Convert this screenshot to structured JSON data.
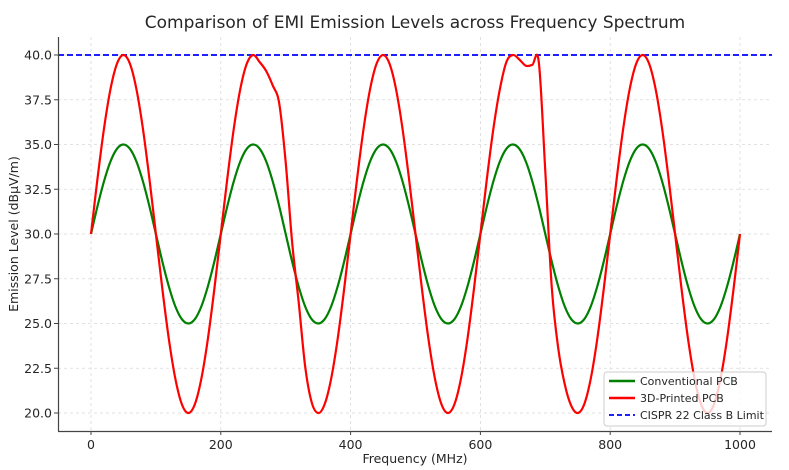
{
  "chart_data": {
    "type": "line",
    "title": "Comparison of EMI Emission Levels across Frequency Spectrum",
    "xlabel": "Frequency (MHz)",
    "ylabel": "Emission Level (dBµV/m)",
    "xlim": [
      -50,
      1050
    ],
    "ylim": [
      19,
      41
    ],
    "xticks": [
      0,
      200,
      400,
      600,
      800,
      1000
    ],
    "xtick_labels": [
      "0",
      "200",
      "400",
      "600",
      "800",
      "1000"
    ],
    "yticks": [
      20.0,
      22.5,
      25.0,
      27.5,
      30.0,
      32.5,
      35.0,
      37.5,
      40.0
    ],
    "ytick_labels": [
      "20.0",
      "22.5",
      "25.0",
      "27.5",
      "30.0",
      "32.5",
      "35.0",
      "37.5",
      "40.0"
    ],
    "grid": true,
    "legend_position": "lower-right",
    "x": [
      0,
      10,
      20,
      30,
      40,
      50,
      60,
      70,
      80,
      90,
      100,
      110,
      120,
      130,
      140,
      150,
      160,
      170,
      180,
      190,
      200,
      210,
      220,
      230,
      240,
      250,
      260,
      270,
      280,
      290,
      300,
      310,
      320,
      330,
      340,
      350,
      360,
      370,
      380,
      390,
      400,
      410,
      420,
      430,
      440,
      450,
      460,
      470,
      480,
      490,
      500,
      510,
      520,
      530,
      540,
      550,
      560,
      570,
      580,
      590,
      600,
      610,
      620,
      630,
      640,
      650,
      660,
      670,
      680,
      690,
      700,
      710,
      720,
      730,
      740,
      750,
      760,
      770,
      780,
      790,
      800,
      810,
      820,
      830,
      840,
      850,
      860,
      870,
      880,
      890,
      900,
      910,
      920,
      930,
      940,
      950,
      960,
      970,
      980,
      990,
      1000
    ],
    "series": [
      {
        "name": "Conventional PCB",
        "color": "#008000",
        "style": "solid",
        "values": [
          30,
          31.55,
          32.94,
          34.05,
          34.76,
          35,
          34.76,
          34.05,
          32.94,
          31.55,
          30,
          28.45,
          27.06,
          25.95,
          25.24,
          25,
          25.24,
          25.95,
          27.06,
          28.45,
          30,
          31.55,
          32.94,
          34.05,
          34.76,
          35,
          34.76,
          34.05,
          32.94,
          31.55,
          30,
          28.45,
          27.06,
          25.95,
          25.24,
          25,
          25.24,
          25.95,
          27.06,
          28.45,
          30,
          31.55,
          32.94,
          34.05,
          34.76,
          35,
          34.76,
          34.05,
          32.94,
          31.55,
          30,
          28.45,
          27.06,
          25.95,
          25.24,
          25,
          25.24,
          25.95,
          27.06,
          28.45,
          30,
          31.55,
          32.94,
          34.05,
          34.76,
          35,
          34.76,
          34.05,
          32.94,
          31.55,
          30,
          28.45,
          27.06,
          25.95,
          25.24,
          25,
          25.24,
          25.95,
          27.06,
          28.45,
          30,
          31.55,
          32.94,
          34.05,
          34.76,
          35,
          34.76,
          34.05,
          32.94,
          31.55,
          30,
          28.45,
          27.06,
          25.95,
          25.24,
          25,
          25.24,
          25.95,
          27.06,
          28.45,
          30
        ]
      },
      {
        "name": "3D-Printed PCB",
        "color": "#ff0000",
        "style": "solid",
        "values": [
          30,
          33.09,
          35.88,
          38.09,
          39.51,
          40,
          39.51,
          38.09,
          35.88,
          33.09,
          30,
          26.91,
          24.12,
          21.91,
          20.49,
          20,
          20.49,
          21.91,
          24.12,
          26.91,
          30,
          33.09,
          35.88,
          38.09,
          39.51,
          40,
          39.6,
          39.1,
          38.3,
          37.3,
          34.0,
          29.5,
          26.2,
          22.6,
          20.6,
          20,
          20.49,
          21.91,
          24.12,
          26.91,
          30,
          33.09,
          35.88,
          38.09,
          39.51,
          40,
          39.51,
          38.09,
          35.88,
          33.09,
          30,
          26.91,
          24.12,
          21.91,
          20.49,
          20,
          20.49,
          21.91,
          24.12,
          26.91,
          30,
          33.09,
          35.88,
          38.09,
          39.6,
          40,
          39.75,
          39.4,
          39.45,
          39.6,
          33.5,
          27.0,
          23.6,
          21.6,
          20.4,
          20,
          20.49,
          21.91,
          24.12,
          26.91,
          30,
          33.09,
          35.88,
          38.09,
          39.51,
          40,
          39.51,
          38.09,
          35.88,
          33.09,
          30,
          26.91,
          24.12,
          21.91,
          20.49,
          20,
          20.49,
          21.91,
          24.12,
          26.91,
          30
        ]
      },
      {
        "name": "CISPR 22 Class B Limit",
        "color": "#0000ff",
        "style": "dashed",
        "constant": 40
      }
    ]
  }
}
